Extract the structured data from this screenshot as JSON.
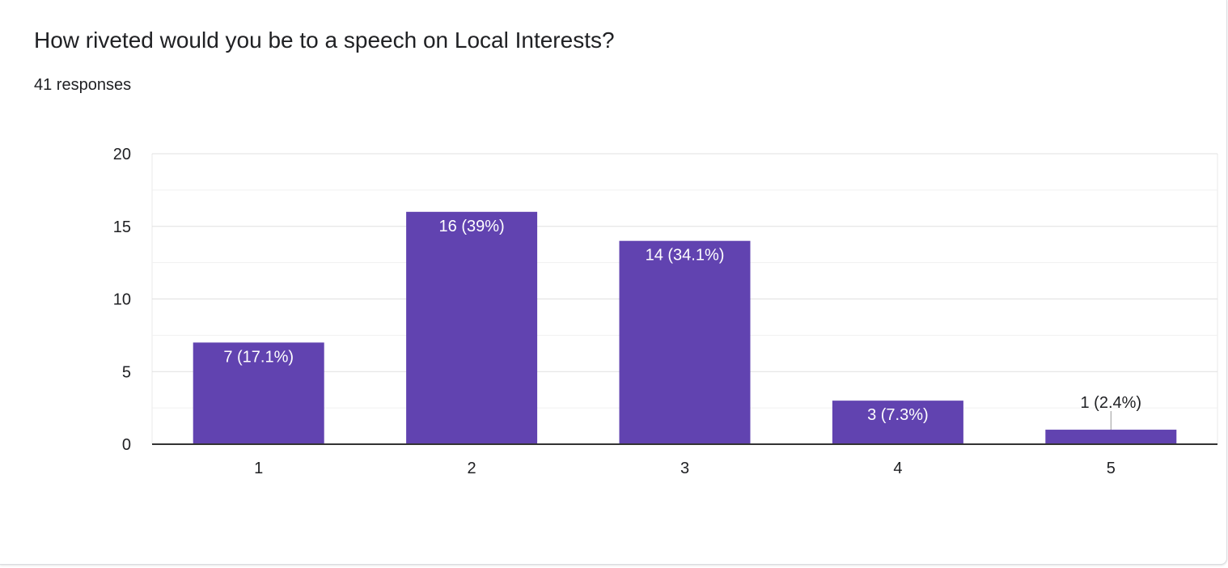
{
  "question": {
    "title": "How riveted would you be to a speech on Local Interests?",
    "responses": "41 responses"
  },
  "colors": {
    "bar": "#6143b0",
    "gridline": "#e8e8e8",
    "axis": "#333333",
    "inside_label": "#ffffff",
    "outside_label": "#202124"
  },
  "chart_data": {
    "type": "bar",
    "title": "How riveted would you be to a speech on Local Interests?",
    "xlabel": "",
    "ylabel": "",
    "categories": [
      "1",
      "2",
      "3",
      "4",
      "5"
    ],
    "values": [
      7,
      16,
      14,
      3,
      1
    ],
    "data_labels": [
      "7 (17.1%)",
      "16 (39%)",
      "14 (34.1%)",
      "3 (7.3%)",
      "1 (2.4%)"
    ],
    "ylim": [
      0,
      20
    ],
    "yticks": [
      0,
      5,
      10,
      15,
      20
    ],
    "ytick_labels": [
      "0",
      "5",
      "10",
      "15",
      "20"
    ],
    "minor_gridlines": true,
    "grid": true,
    "legend": "none"
  }
}
